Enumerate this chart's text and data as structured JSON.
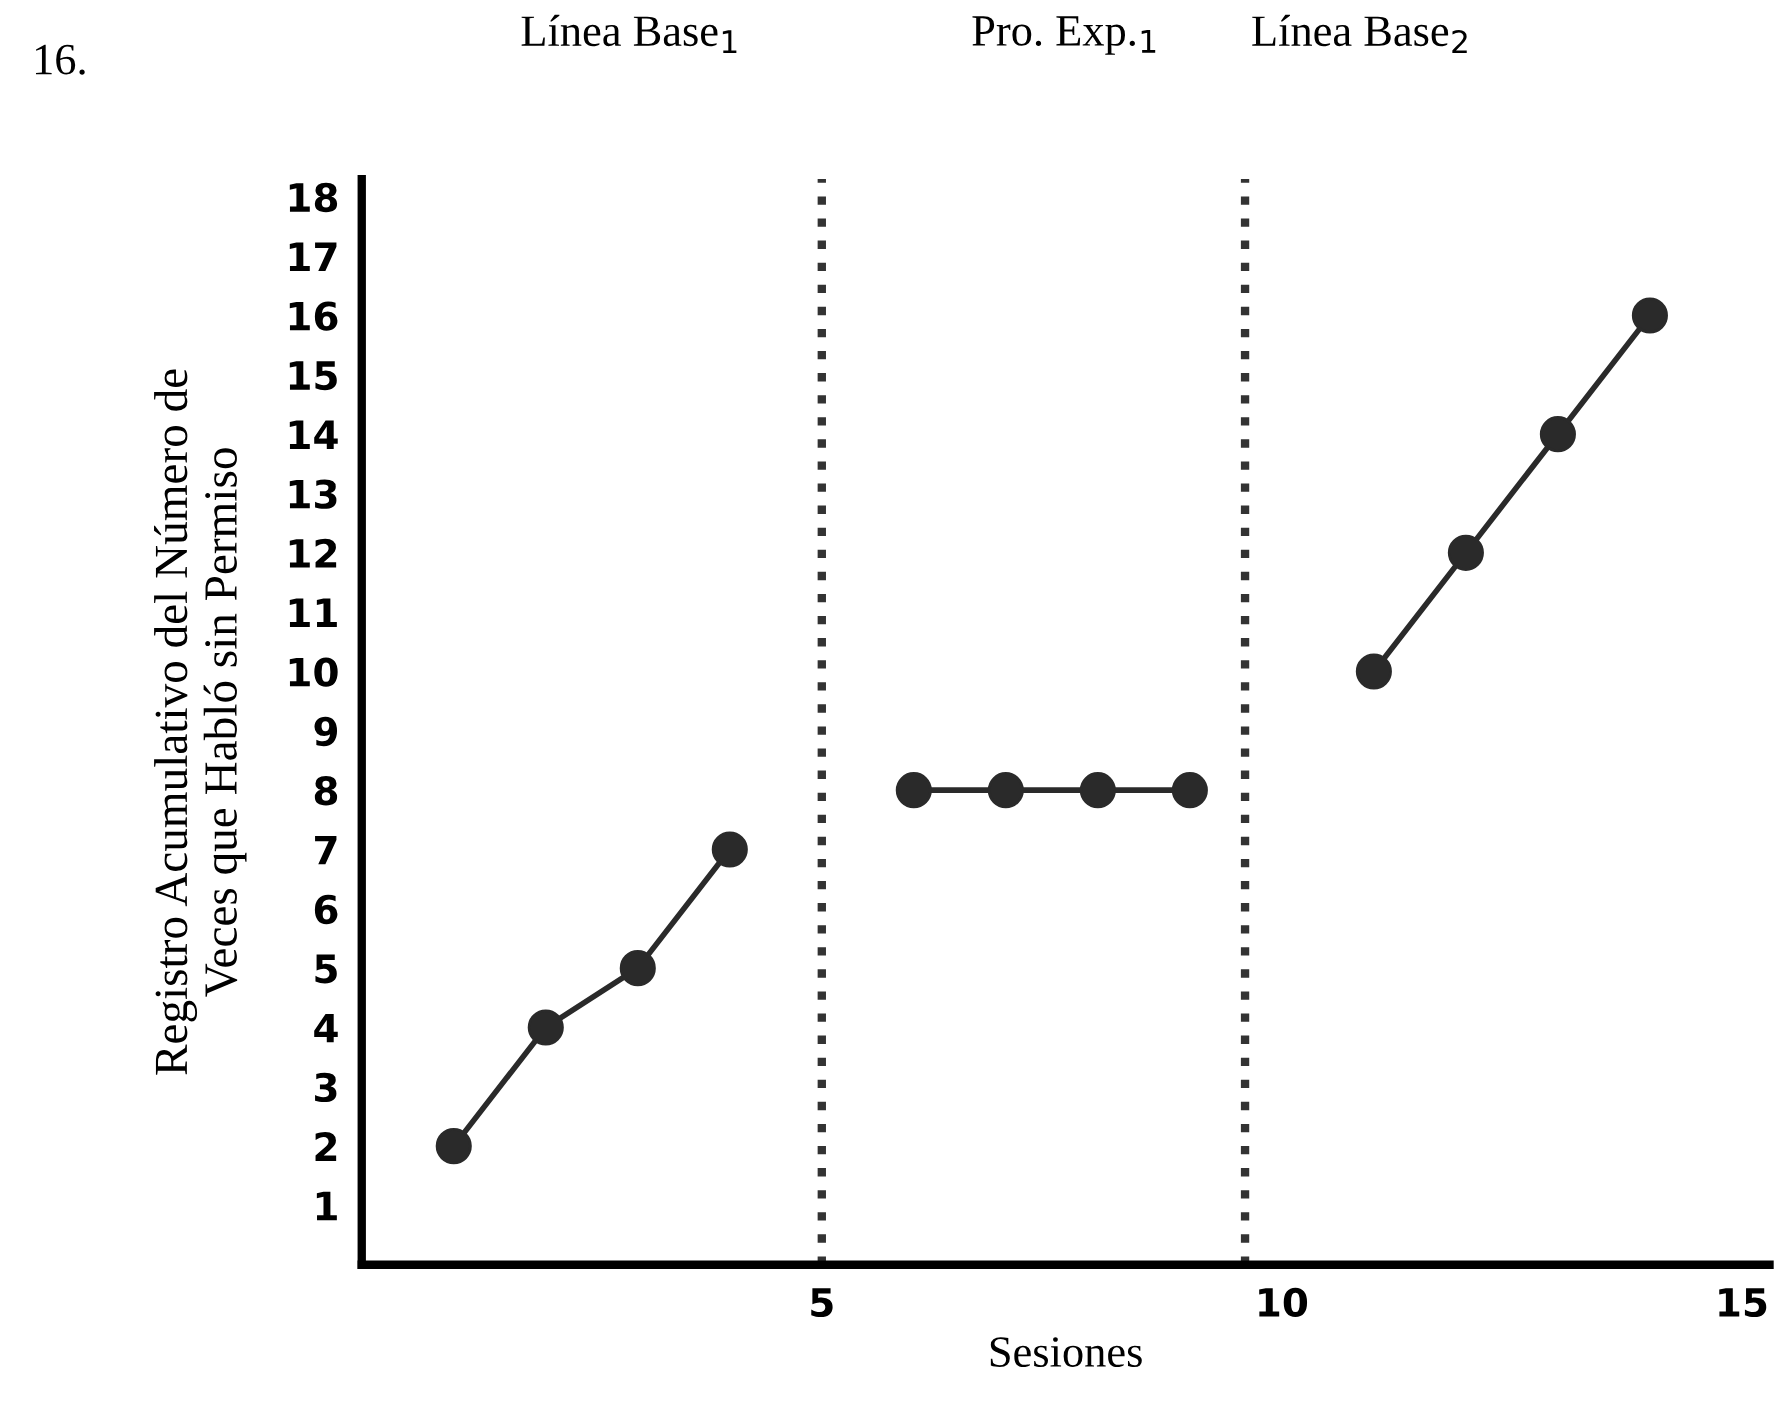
{
  "chart_data": {
    "type": "line",
    "xlabel": "Sesiones",
    "ylabel": "Registro Acumulativo del Número de\nVeces que Habló sin Permiso",
    "annotations": [
      "16.",
      "Línea Base$_{1}$",
      "Pro. Exp.$_{1}$",
      "Línea Base$_{2}$"
    ],
    "series": [
      {
        "color": "#2a2a2a",
        "x": [
          1,
          2,
          3,
          4
        ],
        "values": [
          2,
          4,
          5,
          7
        ]
      },
      {
        "color": "#2a2a2a",
        "x": [
          6,
          7,
          8,
          9
        ],
        "values": [
          8,
          8,
          8,
          8
        ]
      },
      {
        "color": "#2a2a2a",
        "x": [
          11,
          12,
          13,
          14
        ],
        "values": [
          10,
          12,
          14,
          16
        ]
      }
    ],
    "ref_lines": [
      {
        "axis": "x",
        "value": 5,
        "line_style": "dotted",
        "color": "#333333"
      },
      {
        "axis": "x",
        "value": 9.6,
        "line_style": "dotted",
        "color": "#333333"
      }
    ],
    "xlim": [
      0,
      15.3
    ],
    "xticks": [
      5,
      10,
      15
    ],
    "ylim": [
      0,
      18.3
    ],
    "yticks": [
      1,
      2,
      3,
      4,
      5,
      6,
      7,
      8,
      9,
      10,
      11,
      12,
      13,
      14,
      15,
      16,
      17,
      18
    ],
    "marker": "circle",
    "line_style": "solid",
    "grid": false,
    "legend": false
  }
}
